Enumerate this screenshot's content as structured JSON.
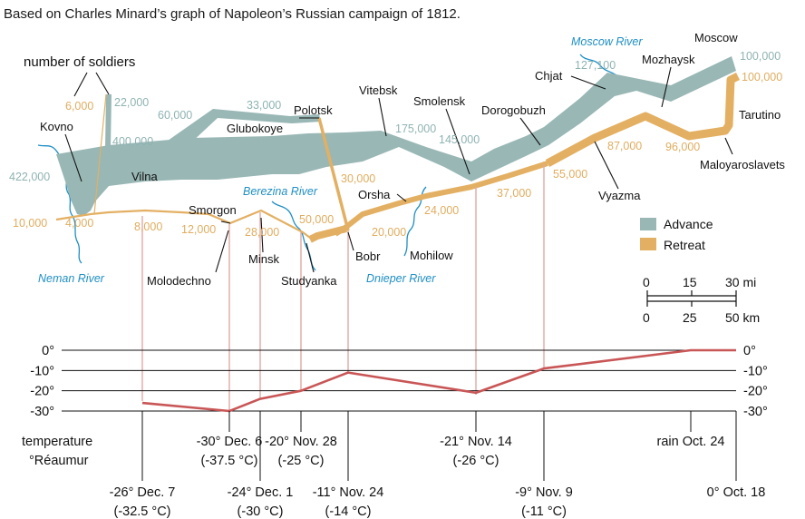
{
  "title": "Based on Charles Minard’s graph of Napoleon’s Russian campaign of 1812.",
  "colors": {
    "advance": "#98b7b5",
    "retreat": "#e3b063",
    "river": "#1f8fc4",
    "temperature": "#c95656",
    "drop_line": "#e4a7a2"
  },
  "callout_label": "number of soldiers",
  "cities": {
    "kovno": "Kovno",
    "vilna": "Vilna",
    "glubokoye": "Glubokoye",
    "polotsk": "Polotsk",
    "vitebsk": "Vitebsk",
    "smolensk": "Smolensk",
    "dorogobuzh": "Dorogobuzh",
    "chjat": "Chjat",
    "mozhaysk": "Mozhaysk",
    "moscow": "Moscow",
    "tarutino": "Tarutino",
    "maloyaroslavets": "Maloyaroslavets",
    "vyazma": "Vyazma",
    "orsha": "Orsha",
    "mohilow": "Mohilow",
    "bobr": "Bobr",
    "studyanka": "Studyanka",
    "minsk": "Minsk",
    "smorgon": "Smorgon",
    "molodechno": "Molodechno"
  },
  "rivers": {
    "neman": "Neman River",
    "berezina": "Berezina River",
    "dnieper": "Dnieper River",
    "moscow": "Moscow River"
  },
  "advance_labels": {
    "kovno": "422,000",
    "vilna": "400,000",
    "branch_top": "22,000",
    "glubokoye_north": "60,000",
    "polotsk_north": "33,000",
    "vitebsk": "175,000",
    "smolensk": "145,000",
    "chjat": "127,100",
    "moscow": "100,000"
  },
  "retreat_labels": {
    "moscow": "100,000",
    "maloyaroslavets": "96,000",
    "vyazma_west": "87,000",
    "vyazma": "55,000",
    "smolensk": "37,000",
    "orsha": "24,000",
    "polotsk_branch": "30,000",
    "bobr": "20,000",
    "berezina": "50,000",
    "minsk": "28,000",
    "smorgon": "12,000",
    "molodechno": "8,000",
    "vilna": "4,000",
    "kovno": "10,000",
    "branch_top": "6,000"
  },
  "legend": {
    "advance": "Advance",
    "retreat": "Retreat"
  },
  "scale_bar": {
    "miles": [
      "0",
      "15",
      "30 mi"
    ],
    "km": [
      "0",
      "25",
      "50 km"
    ]
  },
  "chart_data": {
    "type": "line",
    "title": "",
    "ylabel": "temperature\n°Réaumur",
    "y_unit": "°Réaumur",
    "ylim": [
      -30,
      0
    ],
    "y_ticks": [
      "0°",
      "-10°",
      "-20°",
      "-30°"
    ],
    "temperature_label": [
      "temperature",
      "°Réaumur"
    ],
    "points": [
      {
        "date": "Oct. 18",
        "temp": 0,
        "label": [
          "0° Oct. 18"
        ],
        "row": "lower"
      },
      {
        "date": "Oct. 24",
        "temp": 0,
        "label": [
          "rain Oct. 24"
        ],
        "row": "upper"
      },
      {
        "date": "Nov. 9",
        "temp": -9,
        "label": [
          "-9° Nov. 9",
          "(-11 °C)"
        ],
        "row": "lower"
      },
      {
        "date": "Nov. 14",
        "temp": -21,
        "label": [
          "-21° Nov. 14",
          "(-26 °C)"
        ],
        "row": "upper"
      },
      {
        "date": "Nov. 24",
        "temp": -11,
        "label": [
          "-11° Nov. 24",
          "(-14 °C)"
        ],
        "row": "lower"
      },
      {
        "date": "Nov. 28",
        "temp": -20,
        "label": [
          "-20° Nov. 28",
          "(-25 °C)"
        ],
        "row": "upper"
      },
      {
        "date": "Dec. 1",
        "temp": -24,
        "label": [
          "-24° Dec. 1",
          "(-30 °C)"
        ],
        "row": "lower"
      },
      {
        "date": "Dec. 6",
        "temp": -30,
        "label": [
          "-30° Dec. 6",
          "(-37.5 °C)"
        ],
        "row": "upper"
      },
      {
        "date": "Dec. 7",
        "temp": -26,
        "label": [
          "-26° Dec. 7",
          "(-32.5 °C)"
        ],
        "row": "lower"
      }
    ]
  }
}
